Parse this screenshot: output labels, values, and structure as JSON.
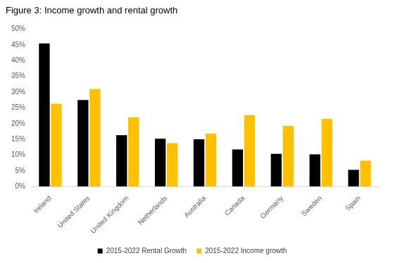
{
  "chart_data": {
    "type": "bar",
    "title": "Figure 3: Income growth and rental growth",
    "categories": [
      "Ireland",
      "United States",
      "United Kingdom",
      "Netherlands",
      "Australia",
      "Canada",
      "Germany",
      "Sweden",
      "Spain"
    ],
    "series": [
      {
        "name": "2015-2022 Rental Growth",
        "color": "#000000",
        "values": [
          45.5,
          27.5,
          16.3,
          15.2,
          15.0,
          11.8,
          10.4,
          10.2,
          5.3
        ]
      },
      {
        "name": "2015-2022 Income growth",
        "color": "#FFC000",
        "values": [
          26.3,
          31.0,
          22.0,
          13.8,
          16.8,
          22.7,
          19.3,
          21.5,
          8.2
        ]
      }
    ],
    "ylim": [
      0,
      50
    ],
    "yticks": [
      {
        "value": 0,
        "label": "0%"
      },
      {
        "value": 5,
        "label": "5%"
      },
      {
        "value": 10,
        "label": "10%"
      },
      {
        "value": 15,
        "label": "15%"
      },
      {
        "value": 20,
        "label": "20%"
      },
      {
        "value": 25,
        "label": "25%"
      },
      {
        "value": 30,
        "label": "30%"
      },
      {
        "value": 35,
        "label": "35%"
      },
      {
        "value": 40,
        "label": "40%"
      },
      {
        "value": 45,
        "label": "45%"
      },
      {
        "value": 50,
        "label": "50%"
      }
    ],
    "grid": false,
    "legend": "bottom"
  }
}
